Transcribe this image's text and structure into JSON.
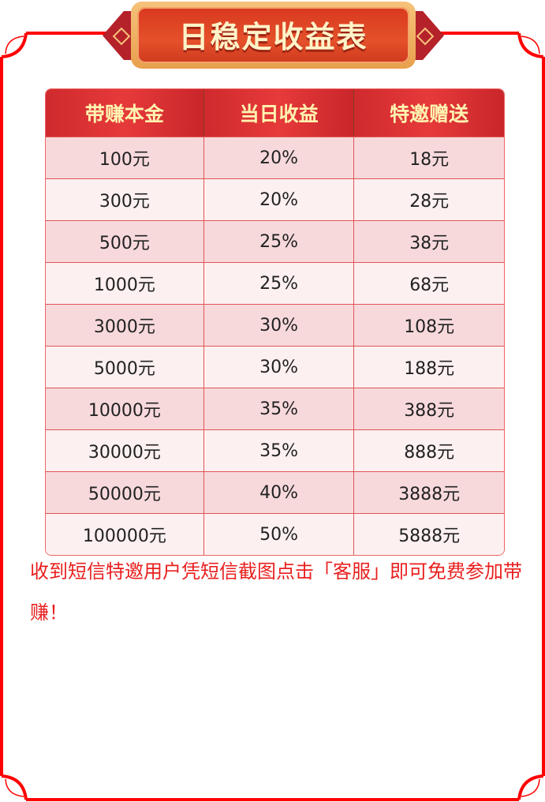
{
  "title": "日稳定收益表",
  "colors": {
    "frame": "#ff0000",
    "header": "#e23636",
    "header_text": "#fff4b0",
    "row_odd": "#f7d9dc",
    "row_even": "#fdf0f1",
    "note": "#e8201f"
  },
  "table": {
    "headers": [
      "带赚本金",
      "当日收益",
      "特邀赠送"
    ],
    "rows": [
      [
        "100元",
        "20%",
        "18元"
      ],
      [
        "300元",
        "20%",
        "28元"
      ],
      [
        "500元",
        "25%",
        "38元"
      ],
      [
        "1000元",
        "25%",
        "68元"
      ],
      [
        "3000元",
        "30%",
        "108元"
      ],
      [
        "5000元",
        "30%",
        "188元"
      ],
      [
        "10000元",
        "35%",
        "388元"
      ],
      [
        "30000元",
        "35%",
        "888元"
      ],
      [
        "50000元",
        "40%",
        "3888元"
      ],
      [
        "100000元",
        "50%",
        "5888元"
      ]
    ]
  },
  "note": "收到短信特邀用户凭短信截图点击「客服」即可免费参加带赚！"
}
